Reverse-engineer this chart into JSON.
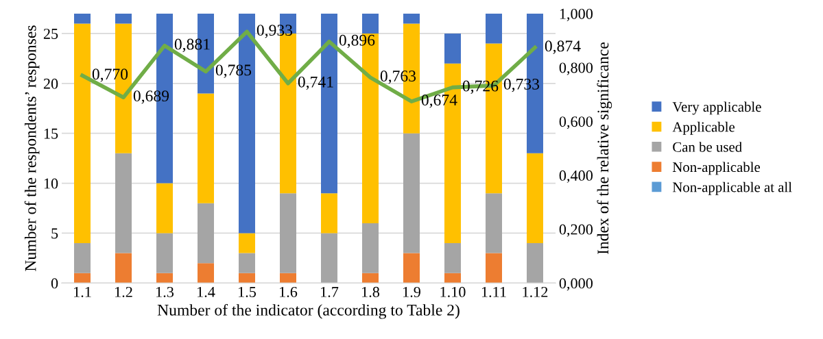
{
  "chart_data": {
    "type": "bar",
    "stacked": true,
    "xlabel": "Number of the indicator (according to Table 2)",
    "ylabel": "Number of the respondents’ responses",
    "y2label": "Index of the relative significance",
    "categories": [
      "1.1",
      "1.2",
      "1.3",
      "1.4",
      "1.5",
      "1.6",
      "1.7",
      "1.8",
      "1.9",
      "1.10",
      "1.11",
      "1.12"
    ],
    "series": [
      {
        "name": "Non-applicable at all",
        "color": "#5b9bd5",
        "values": [
          0,
          0,
          0,
          0,
          0,
          0,
          0,
          0,
          0,
          0,
          0,
          0
        ]
      },
      {
        "name": "Non-applicable",
        "color": "#ed7d31",
        "values": [
          1,
          3,
          1,
          2,
          1,
          1,
          0,
          1,
          3,
          1,
          3,
          0
        ]
      },
      {
        "name": "Can be used",
        "color": "#a5a5a5",
        "values": [
          3,
          10,
          4,
          6,
          2,
          8,
          5,
          5,
          12,
          3,
          6,
          4
        ]
      },
      {
        "name": "Applicable",
        "color": "#ffc000",
        "values": [
          22,
          13,
          5,
          11,
          2,
          16,
          4,
          19,
          11,
          18,
          15,
          9
        ]
      },
      {
        "name": "Very applicable",
        "color": "#4472c4",
        "values": [
          1,
          1,
          17,
          8,
          22,
          2,
          18,
          2,
          1,
          3,
          3,
          14
        ]
      },
      {
        "type": "line",
        "axis": "y2",
        "color": "#70ad47",
        "values": [
          0.77,
          0.689,
          0.881,
          0.785,
          0.933,
          0.741,
          0.896,
          0.763,
          0.674,
          0.726,
          0.733,
          0.874
        ],
        "value_labels": [
          "0,770",
          "0,689",
          "0,881",
          "0,785",
          "0,933",
          "0,741",
          "0,896",
          "0,763",
          "0,674",
          "0,726",
          "0,733",
          "0,874"
        ]
      }
    ],
    "ylim": [
      0,
      27
    ],
    "yticks": [
      0,
      5,
      10,
      15,
      20,
      25
    ],
    "y2lim": [
      0,
      1
    ],
    "y2ticks": [
      {
        "value": 0,
        "label": "0,000"
      },
      {
        "value": 0.2,
        "label": "0,200"
      },
      {
        "value": 0.4,
        "label": "0,400"
      },
      {
        "value": 0.6,
        "label": "0,600"
      },
      {
        "value": 0.8,
        "label": "0,800"
      },
      {
        "value": 1,
        "label": "1,000"
      }
    ],
    "grid": "y",
    "legend": "right",
    "marker": "none",
    "line_style": "solid"
  }
}
